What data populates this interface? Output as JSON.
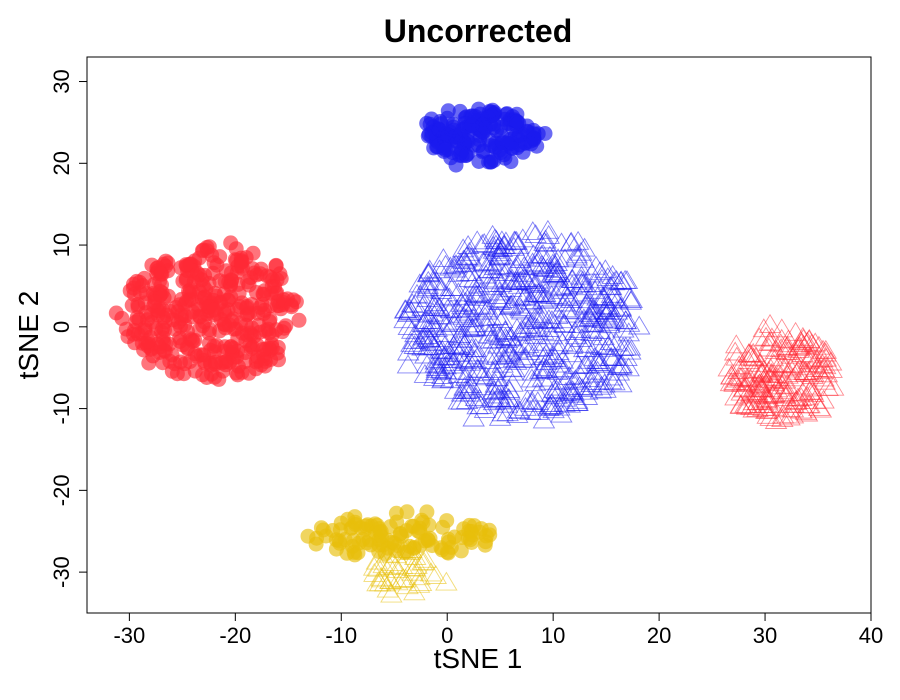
{
  "chart_data": {
    "type": "scatter",
    "title": "Uncorrected",
    "xlabel": "tSNE 1",
    "ylabel": "tSNE 2",
    "xlim": [
      -34,
      40
    ],
    "ylim": [
      -35,
      33
    ],
    "xticks": [
      -30,
      -20,
      -10,
      0,
      10,
      20,
      30,
      40
    ],
    "yticks": [
      -30,
      -20,
      -10,
      0,
      10,
      20,
      30
    ],
    "grid": false,
    "legend": "none",
    "colors": {
      "red": "#ff2a35",
      "blue": "#1a1aee",
      "yellow": "#e8bf0a"
    },
    "groups": [
      {
        "color": "blue",
        "marker": "circle",
        "center": [
          3,
          23.5
        ],
        "spread": [
          5.5,
          3.3
        ],
        "count": 170
      },
      {
        "color": "red",
        "marker": "circle",
        "center": [
          -22.5,
          1.5
        ],
        "spread": [
          8.0,
          8.2
        ],
        "count": 380
      },
      {
        "color": "blue",
        "marker": "triangle",
        "center": [
          7,
          0
        ],
        "spread": [
          11,
          11.5
        ],
        "count": 650
      },
      {
        "color": "red",
        "marker": "triangle",
        "center": [
          31.5,
          -6
        ],
        "spread": [
          4.8,
          5.5
        ],
        "count": 200
      },
      {
        "color": "yellow",
        "marker": "circle",
        "center": [
          -4.5,
          -25.5
        ],
        "spread": [
          8.5,
          2.5
        ],
        "count": 110
      },
      {
        "color": "yellow",
        "marker": "triangle",
        "center": [
          -4,
          -30
        ],
        "spread": [
          3.5,
          3.0
        ],
        "count": 45
      }
    ]
  }
}
